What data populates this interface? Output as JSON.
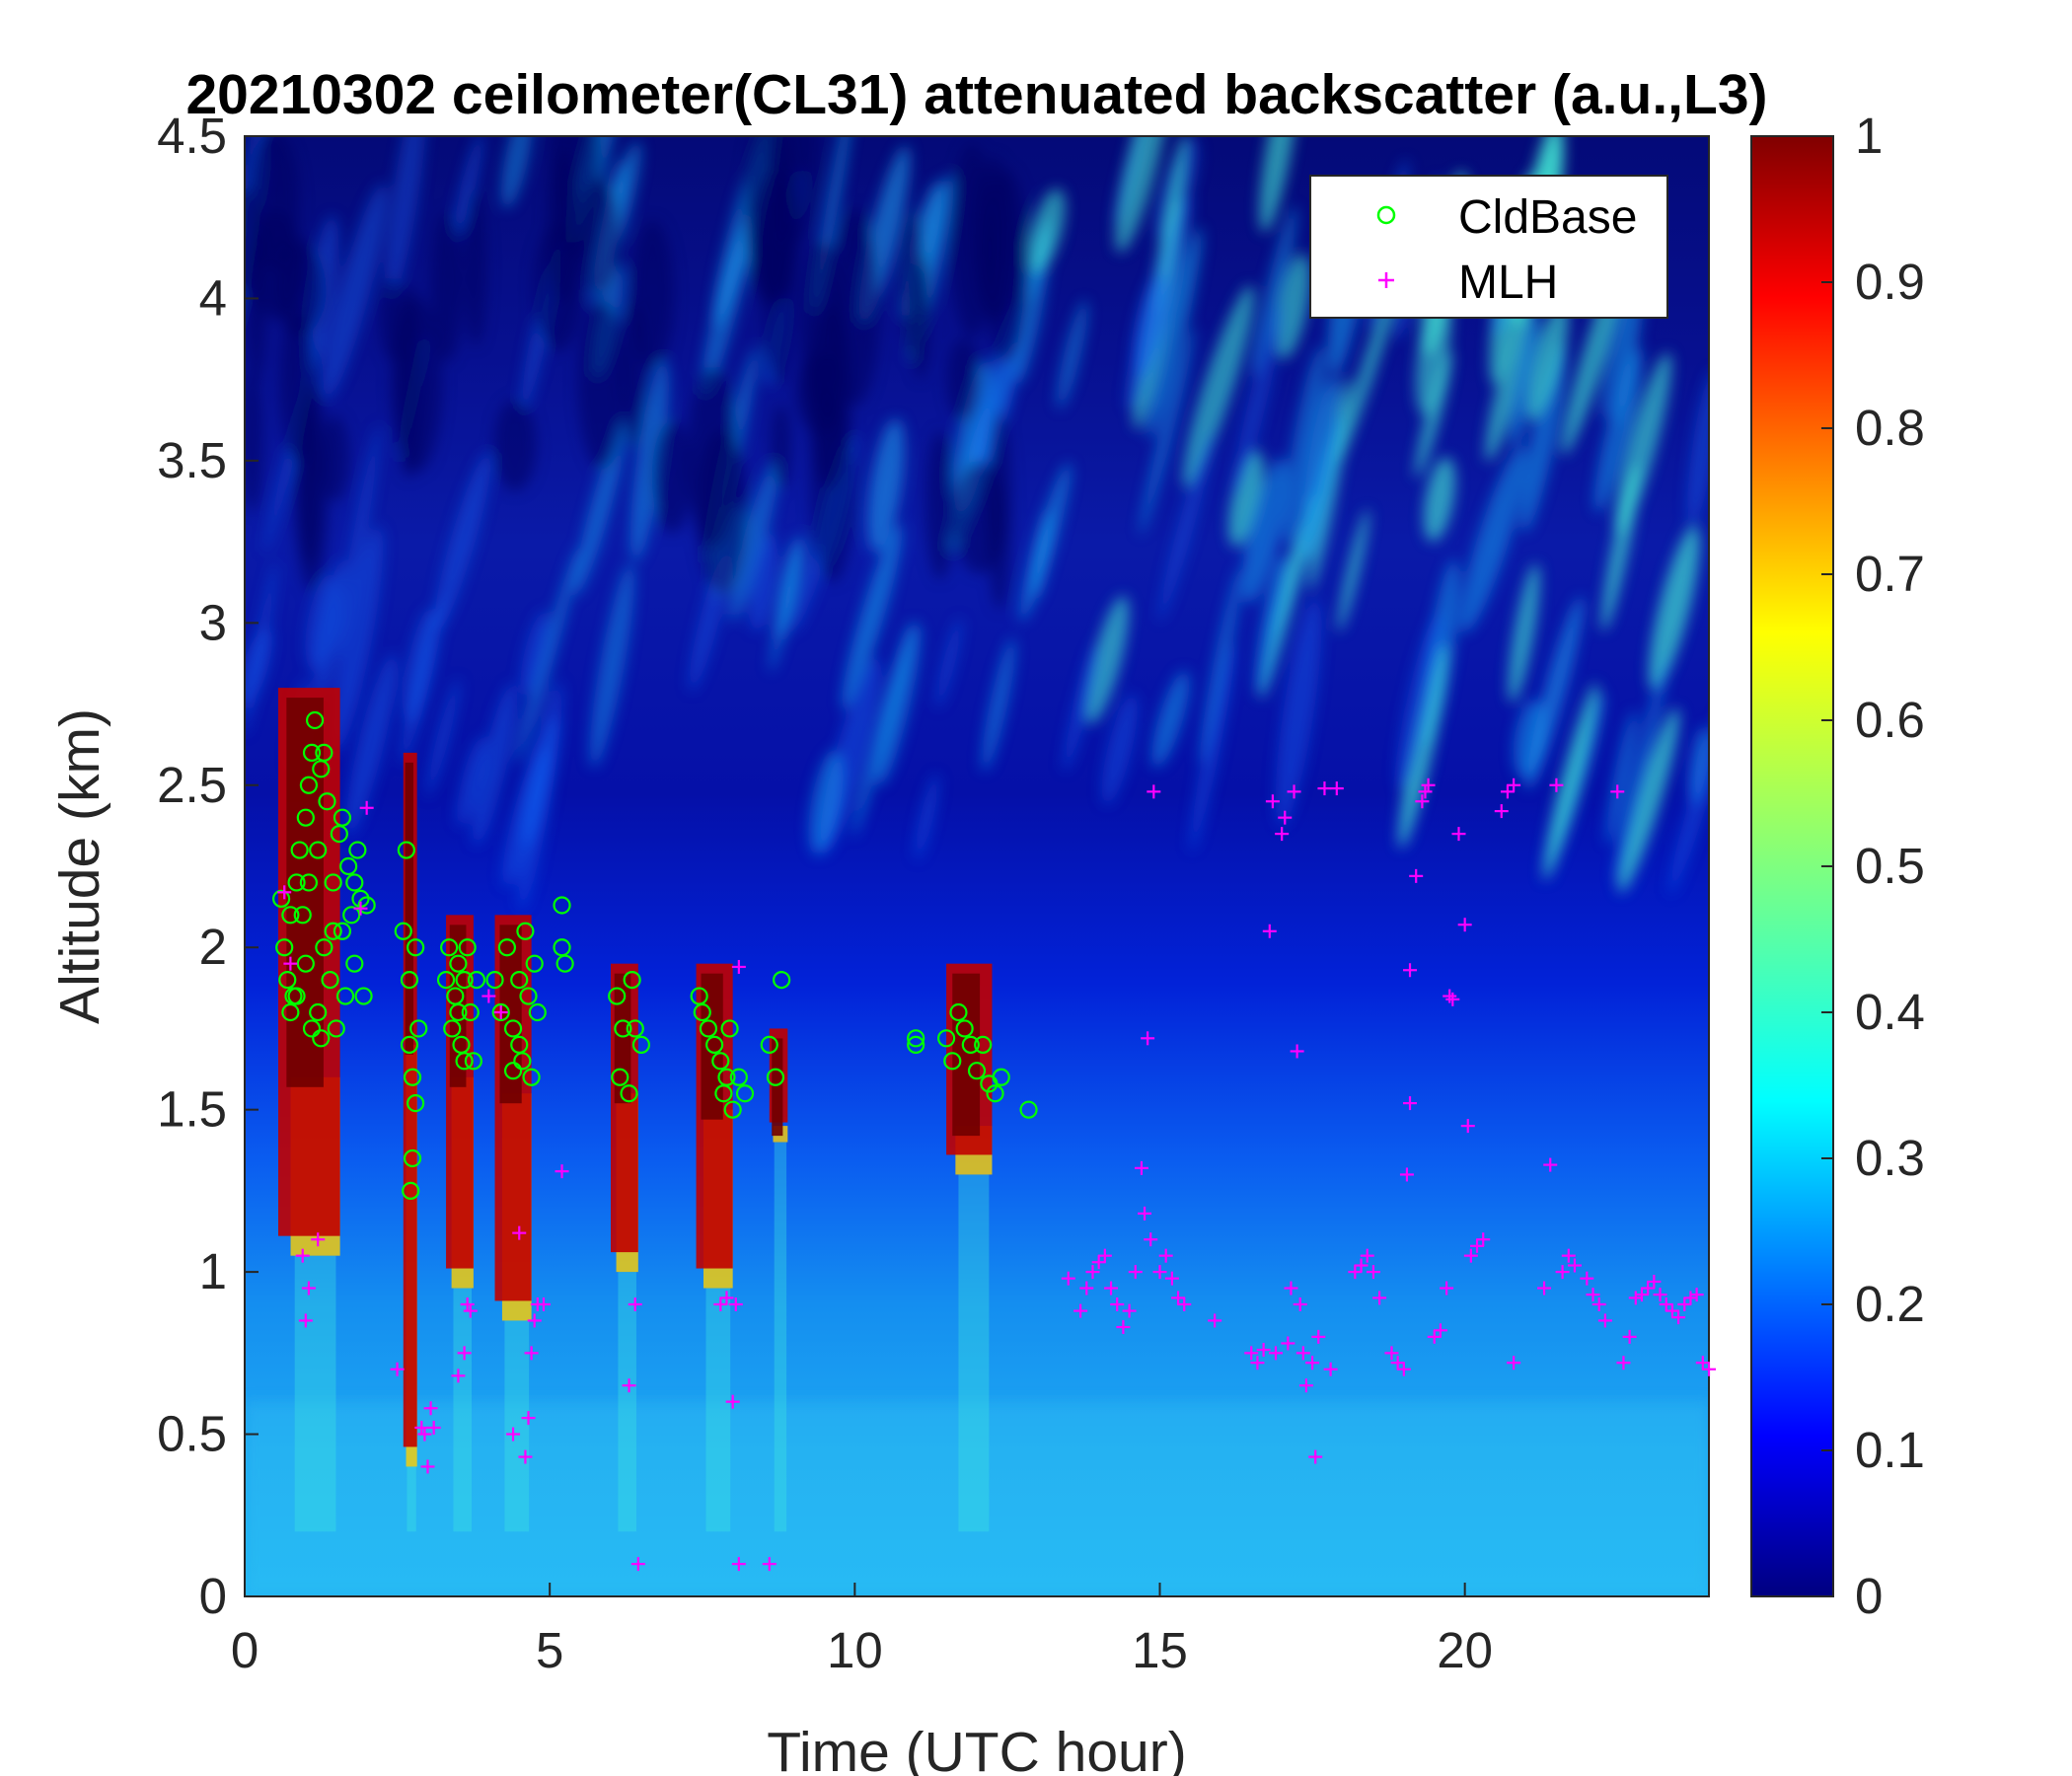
{
  "chart_data": {
    "type": "heatmap",
    "title": "20210302 ceilometer(CL31) attenuated backscatter (a.u.,L3)",
    "xlabel": "Time (UTC hour)",
    "ylabel": "Altitude (km)",
    "xlim": [
      0,
      24
    ],
    "ylim": [
      0,
      4.5
    ],
    "x_ticks": [
      "0",
      "5",
      "10",
      "15",
      "20"
    ],
    "x_tick_values": [
      0,
      5,
      10,
      15,
      20
    ],
    "y_ticks": [
      "0",
      "0.5",
      "1",
      "1.5",
      "2",
      "2.5",
      "3",
      "3.5",
      "4",
      "4.5"
    ],
    "y_tick_values": [
      0,
      0.5,
      1,
      1.5,
      2,
      2.5,
      3,
      3.5,
      4,
      4.5
    ],
    "colorbar": {
      "colormap": "jet",
      "range": [
        0,
        1
      ],
      "ticks": [
        "0",
        "0.1",
        "0.2",
        "0.3",
        "0.4",
        "0.5",
        "0.6",
        "0.7",
        "0.8",
        "0.9",
        "1"
      ],
      "tick_values": [
        0,
        0.1,
        0.2,
        0.3,
        0.4,
        0.5,
        0.6,
        0.7,
        0.8,
        0.9,
        1
      ]
    },
    "legend": {
      "placement": "top-right",
      "entries": [
        {
          "label": "CldBase",
          "marker": "circle",
          "color": "#00ff00"
        },
        {
          "label": "MLH",
          "marker": "plus",
          "color": "#ff00ff"
        }
      ]
    },
    "cloud_layers": [
      {
        "t0": 0.55,
        "t1": 1.9,
        "base": 1.6,
        "top": 2.8,
        "low": 1.05
      },
      {
        "t0": 2.6,
        "t1": 2.9,
        "base": 1.7,
        "top": 2.6,
        "low": 0.4
      },
      {
        "t0": 3.3,
        "t1": 3.9,
        "base": 1.6,
        "top": 2.1,
        "low": 0.95
      },
      {
        "t0": 4.1,
        "t1": 4.9,
        "base": 1.55,
        "top": 2.1,
        "low": 0.85
      },
      {
        "t0": 6.0,
        "t1": 6.6,
        "base": 1.55,
        "top": 1.95,
        "low": 1.0
      },
      {
        "t0": 7.4,
        "t1": 8.2,
        "base": 1.5,
        "top": 1.95,
        "low": 0.95
      },
      {
        "t0": 8.6,
        "t1": 9.0,
        "base": 1.45,
        "top": 1.75,
        "low": 1.4
      },
      {
        "t0": 11.5,
        "t1": 12.5,
        "base": 1.45,
        "top": 1.95,
        "low": 1.3
      }
    ],
    "series": [
      {
        "name": "CldBase",
        "points": [
          [
            0.6,
            2.15
          ],
          [
            0.65,
            2.0
          ],
          [
            0.7,
            1.9
          ],
          [
            0.75,
            2.1
          ],
          [
            0.8,
            1.85
          ],
          [
            0.85,
            2.2
          ],
          [
            0.9,
            2.3
          ],
          [
            0.95,
            2.1
          ],
          [
            1.0,
            2.4
          ],
          [
            1.0,
            1.95
          ],
          [
            1.05,
            2.5
          ],
          [
            1.1,
            2.6
          ],
          [
            1.1,
            1.75
          ],
          [
            1.15,
            2.7
          ],
          [
            1.2,
            2.3
          ],
          [
            1.2,
            1.8
          ],
          [
            1.25,
            2.55
          ],
          [
            1.3,
            2.0
          ],
          [
            1.35,
            2.45
          ],
          [
            1.4,
            1.9
          ],
          [
            1.45,
            2.2
          ],
          [
            1.5,
            1.75
          ],
          [
            1.55,
            2.35
          ],
          [
            1.6,
            2.05
          ],
          [
            1.65,
            1.85
          ],
          [
            1.7,
            2.25
          ],
          [
            1.75,
            2.1
          ],
          [
            1.8,
            1.95
          ],
          [
            1.85,
            2.3
          ],
          [
            1.9,
            2.15
          ],
          [
            1.95,
            1.85
          ],
          [
            2.0,
            2.13
          ],
          [
            0.85,
            1.85
          ],
          [
            1.05,
            2.2
          ],
          [
            1.25,
            1.72
          ],
          [
            1.45,
            2.05
          ],
          [
            1.6,
            2.4
          ],
          [
            1.8,
            2.2
          ],
          [
            1.3,
            2.6
          ],
          [
            0.75,
            1.8
          ],
          [
            2.6,
            2.05
          ],
          [
            2.65,
            2.3
          ],
          [
            2.7,
            1.9
          ],
          [
            2.7,
            1.7
          ],
          [
            2.75,
            1.6
          ],
          [
            2.8,
            1.52
          ],
          [
            2.75,
            1.35
          ],
          [
            2.72,
            1.25
          ],
          [
            2.8,
            2.0
          ],
          [
            2.85,
            1.75
          ],
          [
            3.3,
            1.9
          ],
          [
            3.35,
            2.0
          ],
          [
            3.4,
            1.75
          ],
          [
            3.45,
            1.85
          ],
          [
            3.5,
            1.95
          ],
          [
            3.55,
            1.7
          ],
          [
            3.6,
            1.9
          ],
          [
            3.65,
            2.0
          ],
          [
            3.7,
            1.8
          ],
          [
            3.75,
            1.65
          ],
          [
            3.8,
            1.9
          ],
          [
            3.5,
            1.8
          ],
          [
            3.6,
            1.65
          ],
          [
            4.1,
            1.9
          ],
          [
            4.2,
            1.8
          ],
          [
            4.3,
            2.0
          ],
          [
            4.4,
            1.75
          ],
          [
            4.5,
            1.9
          ],
          [
            4.55,
            1.65
          ],
          [
            4.6,
            2.05
          ],
          [
            4.65,
            1.85
          ],
          [
            4.7,
            1.6
          ],
          [
            4.75,
            1.95
          ],
          [
            4.8,
            1.8
          ],
          [
            4.4,
            1.62
          ],
          [
            4.5,
            1.7
          ],
          [
            5.2,
            2.13
          ],
          [
            5.2,
            2.0
          ],
          [
            5.25,
            1.95
          ],
          [
            6.1,
            1.85
          ],
          [
            6.15,
            1.6
          ],
          [
            6.2,
            1.75
          ],
          [
            6.3,
            1.55
          ],
          [
            6.35,
            1.9
          ],
          [
            6.4,
            1.75
          ],
          [
            6.5,
            1.7
          ],
          [
            7.45,
            1.85
          ],
          [
            7.5,
            1.8
          ],
          [
            7.6,
            1.75
          ],
          [
            7.7,
            1.7
          ],
          [
            7.8,
            1.65
          ],
          [
            7.85,
            1.55
          ],
          [
            7.9,
            1.6
          ],
          [
            7.95,
            1.75
          ],
          [
            8.0,
            1.5
          ],
          [
            8.1,
            1.6
          ],
          [
            8.2,
            1.55
          ],
          [
            8.6,
            1.7
          ],
          [
            8.7,
            1.6
          ],
          [
            8.8,
            1.9
          ],
          [
            11.0,
            1.72
          ],
          [
            11.0,
            1.7
          ],
          [
            11.5,
            1.72
          ],
          [
            11.6,
            1.65
          ],
          [
            11.7,
            1.8
          ],
          [
            11.8,
            1.75
          ],
          [
            11.9,
            1.7
          ],
          [
            12.0,
            1.62
          ],
          [
            12.1,
            1.7
          ],
          [
            12.2,
            1.58
          ],
          [
            12.3,
            1.55
          ],
          [
            12.4,
            1.6
          ],
          [
            12.85,
            1.5
          ]
        ]
      },
      {
        "name": "MLH",
        "points": [
          [
            0.65,
            2.17
          ],
          [
            0.75,
            1.95
          ],
          [
            0.95,
            1.05
          ],
          [
            1.0,
            0.85
          ],
          [
            1.05,
            0.95
          ],
          [
            1.2,
            1.1
          ],
          [
            1.9,
            2.12
          ],
          [
            2.0,
            2.43
          ],
          [
            2.5,
            0.7
          ],
          [
            2.9,
            0.52
          ],
          [
            2.95,
            0.5
          ],
          [
            3.0,
            0.4
          ],
          [
            3.05,
            0.58
          ],
          [
            3.1,
            0.52
          ],
          [
            3.5,
            0.68
          ],
          [
            3.6,
            0.75
          ],
          [
            3.65,
            0.9
          ],
          [
            3.7,
            0.88
          ],
          [
            4.0,
            1.85
          ],
          [
            4.2,
            1.8
          ],
          [
            4.4,
            0.5
          ],
          [
            4.5,
            1.12
          ],
          [
            4.6,
            0.43
          ],
          [
            4.65,
            0.55
          ],
          [
            4.7,
            0.75
          ],
          [
            4.75,
            0.85
          ],
          [
            4.8,
            0.9
          ],
          [
            4.9,
            0.9
          ],
          [
            5.2,
            1.31
          ],
          [
            6.3,
            0.65
          ],
          [
            6.4,
            0.9
          ],
          [
            6.45,
            0.1
          ],
          [
            7.8,
            0.9
          ],
          [
            7.9,
            0.92
          ],
          [
            8.0,
            0.6
          ],
          [
            8.05,
            0.9
          ],
          [
            8.1,
            0.1
          ],
          [
            8.6,
            0.1
          ],
          [
            8.1,
            1.94
          ],
          [
            13.5,
            0.98
          ],
          [
            13.7,
            0.88
          ],
          [
            13.8,
            0.95
          ],
          [
            13.9,
            1.0
          ],
          [
            14.0,
            1.03
          ],
          [
            14.1,
            1.05
          ],
          [
            14.2,
            0.95
          ],
          [
            14.3,
            0.9
          ],
          [
            14.4,
            0.83
          ],
          [
            14.5,
            0.88
          ],
          [
            14.6,
            1.0
          ],
          [
            14.7,
            1.32
          ],
          [
            14.75,
            1.18
          ],
          [
            14.8,
            1.72
          ],
          [
            14.85,
            1.1
          ],
          [
            14.9,
            2.48
          ],
          [
            15.0,
            1.0
          ],
          [
            15.1,
            1.05
          ],
          [
            15.2,
            0.98
          ],
          [
            15.3,
            0.92
          ],
          [
            15.4,
            0.9
          ],
          [
            15.9,
            0.85
          ],
          [
            16.5,
            0.75
          ],
          [
            16.6,
            0.72
          ],
          [
            16.7,
            0.76
          ],
          [
            16.8,
            2.05
          ],
          [
            16.85,
            2.45
          ],
          [
            16.9,
            0.75
          ],
          [
            17.0,
            2.35
          ],
          [
            17.05,
            2.4
          ],
          [
            17.1,
            0.78
          ],
          [
            17.15,
            0.95
          ],
          [
            17.2,
            2.48
          ],
          [
            17.25,
            1.68
          ],
          [
            17.3,
            0.9
          ],
          [
            17.35,
            0.75
          ],
          [
            17.4,
            0.65
          ],
          [
            17.5,
            0.72
          ],
          [
            17.55,
            0.43
          ],
          [
            17.6,
            0.8
          ],
          [
            17.7,
            2.49
          ],
          [
            17.8,
            0.7
          ],
          [
            17.9,
            2.49
          ],
          [
            18.2,
            1.0
          ],
          [
            18.3,
            1.02
          ],
          [
            18.4,
            1.05
          ],
          [
            18.5,
            1.0
          ],
          [
            18.6,
            0.92
          ],
          [
            18.8,
            0.75
          ],
          [
            18.9,
            0.72
          ],
          [
            19.0,
            0.7
          ],
          [
            19.05,
            1.3
          ],
          [
            19.1,
            1.93
          ],
          [
            19.1,
            1.52
          ],
          [
            19.2,
            2.22
          ],
          [
            19.3,
            2.45
          ],
          [
            19.35,
            2.48
          ],
          [
            19.4,
            2.5
          ],
          [
            19.5,
            0.8
          ],
          [
            19.6,
            0.82
          ],
          [
            19.7,
            0.95
          ],
          [
            19.75,
            1.85
          ],
          [
            19.8,
            1.84
          ],
          [
            19.9,
            2.35
          ],
          [
            20.0,
            2.07
          ],
          [
            20.05,
            1.45
          ],
          [
            20.1,
            1.05
          ],
          [
            20.2,
            1.08
          ],
          [
            20.3,
            1.1
          ],
          [
            20.6,
            2.42
          ],
          [
            20.7,
            2.48
          ],
          [
            20.8,
            2.5
          ],
          [
            20.8,
            0.72
          ],
          [
            21.3,
            0.95
          ],
          [
            21.4,
            1.33
          ],
          [
            21.5,
            2.5
          ],
          [
            21.6,
            1.0
          ],
          [
            21.7,
            1.05
          ],
          [
            21.8,
            1.02
          ],
          [
            22.0,
            0.98
          ],
          [
            22.1,
            0.93
          ],
          [
            22.2,
            0.9
          ],
          [
            22.3,
            0.85
          ],
          [
            22.5,
            2.48
          ],
          [
            22.6,
            0.72
          ],
          [
            22.7,
            0.8
          ],
          [
            22.8,
            0.92
          ],
          [
            22.9,
            0.93
          ],
          [
            23.0,
            0.95
          ],
          [
            23.1,
            0.97
          ],
          [
            23.2,
            0.93
          ],
          [
            23.3,
            0.9
          ],
          [
            23.4,
            0.88
          ],
          [
            23.5,
            0.86
          ],
          [
            23.6,
            0.9
          ],
          [
            23.7,
            0.92
          ],
          [
            23.8,
            0.93
          ],
          [
            23.9,
            0.72
          ],
          [
            24.0,
            0.7
          ]
        ]
      }
    ]
  }
}
